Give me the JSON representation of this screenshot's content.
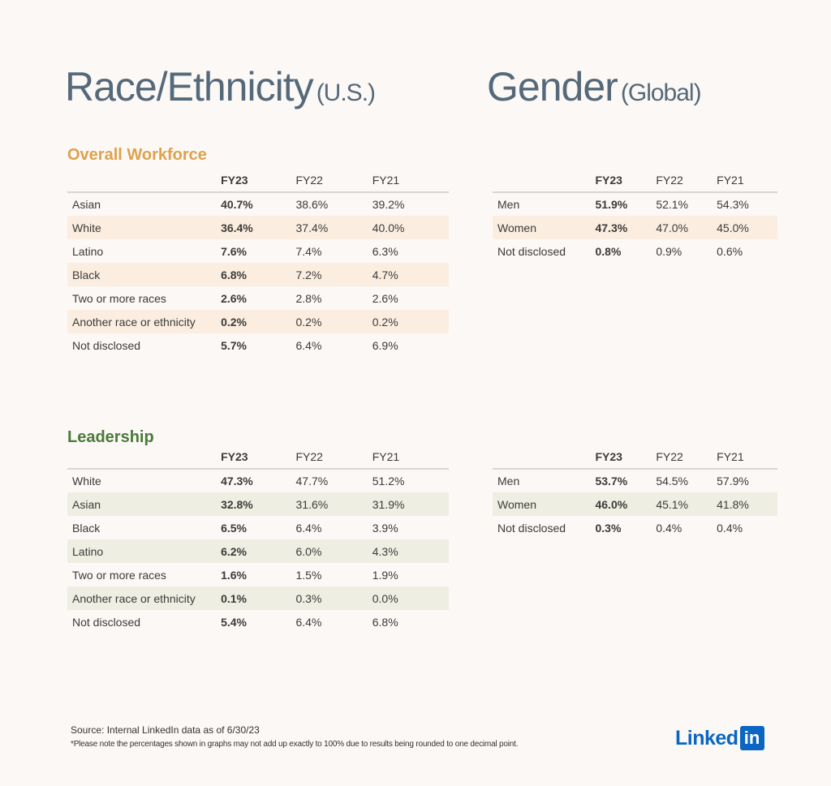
{
  "race_title": {
    "main": "Race/Ethnicity",
    "sub": "(U.S.)"
  },
  "gender_title": {
    "main": "Gender",
    "sub": "(Global)"
  },
  "sections": {
    "overall": "Overall Workforce",
    "leadership": "Leadership"
  },
  "columns": [
    "FY23",
    "FY22",
    "FY21"
  ],
  "race_overall": [
    {
      "label": "Asian",
      "values": [
        "40.7%",
        "38.6%",
        "39.2%"
      ]
    },
    {
      "label": "White",
      "values": [
        "36.4%",
        "37.4%",
        "40.0%"
      ]
    },
    {
      "label": "Latino",
      "values": [
        "7.6%",
        "7.4%",
        "6.3%"
      ]
    },
    {
      "label": "Black",
      "values": [
        "6.8%",
        "7.2%",
        "4.7%"
      ]
    },
    {
      "label": "Two or more races",
      "values": [
        "2.6%",
        "2.8%",
        "2.6%"
      ]
    },
    {
      "label": "Another race or ethnicity",
      "values": [
        "0.2%",
        "0.2%",
        "0.2%"
      ]
    },
    {
      "label": "Not disclosed",
      "values": [
        "5.7%",
        "6.4%",
        "6.9%"
      ]
    }
  ],
  "gender_overall": [
    {
      "label": "Men",
      "values": [
        "51.9%",
        "52.1%",
        "54.3%"
      ]
    },
    {
      "label": "Women",
      "values": [
        "47.3%",
        "47.0%",
        "45.0%"
      ]
    },
    {
      "label": "Not disclosed",
      "values": [
        "0.8%",
        "0.9%",
        "0.6%"
      ]
    }
  ],
  "race_leadership": [
    {
      "label": "White",
      "values": [
        "47.3%",
        "47.7%",
        "51.2%"
      ]
    },
    {
      "label": "Asian",
      "values": [
        "32.8%",
        "31.6%",
        "31.9%"
      ]
    },
    {
      "label": "Black",
      "values": [
        "6.5%",
        "6.4%",
        "3.9%"
      ]
    },
    {
      "label": "Latino",
      "values": [
        "6.2%",
        "6.0%",
        "4.3%"
      ]
    },
    {
      "label": "Two or more races",
      "values": [
        "1.6%",
        "1.5%",
        "1.9%"
      ]
    },
    {
      "label": "Another race or ethnicity",
      "values": [
        "0.1%",
        "0.3%",
        "0.0%"
      ]
    },
    {
      "label": "Not disclosed",
      "values": [
        "5.4%",
        "6.4%",
        "6.8%"
      ]
    }
  ],
  "gender_leadership": [
    {
      "label": "Men",
      "values": [
        "53.7%",
        "54.5%",
        "57.9%"
      ]
    },
    {
      "label": "Women",
      "values": [
        "46.0%",
        "45.1%",
        "41.8%"
      ]
    },
    {
      "label": "Not disclosed",
      "values": [
        "0.3%",
        "0.4%",
        "0.4%"
      ]
    }
  ],
  "footer": {
    "source": "Source: Internal LinkedIn data as of 6/30/23",
    "note": "*Please note the percentages shown in graphs may not add up exactly to 100% due to results being rounded to one decimal point."
  },
  "logo": {
    "word": "Linked",
    "box": "in"
  },
  "colors": {
    "overall_accent": "#dea24c",
    "leadership_accent": "#4b7a3a",
    "linkedin_blue": "#0a66c2"
  }
}
